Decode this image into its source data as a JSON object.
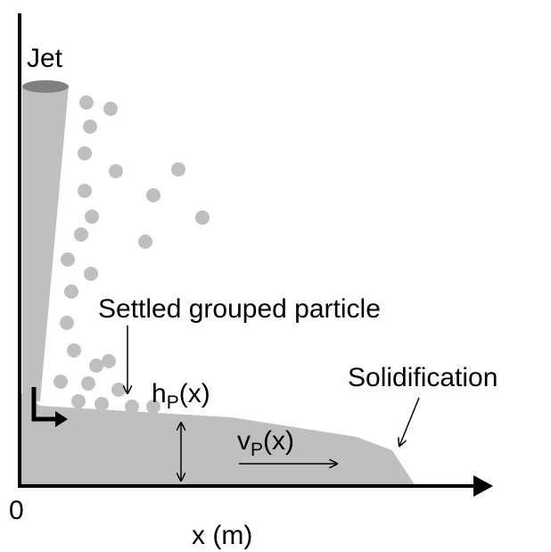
{
  "labels": {
    "jet": "Jet",
    "settled": "Settled grouped particle",
    "height": {
      "base": "h",
      "sub": "P",
      "arg": "(x)"
    },
    "velocity": {
      "base": "v",
      "sub": "P",
      "arg": "(x)"
    },
    "solidification": "Solidification",
    "origin": "0",
    "x_axis": "x (m)"
  }
}
